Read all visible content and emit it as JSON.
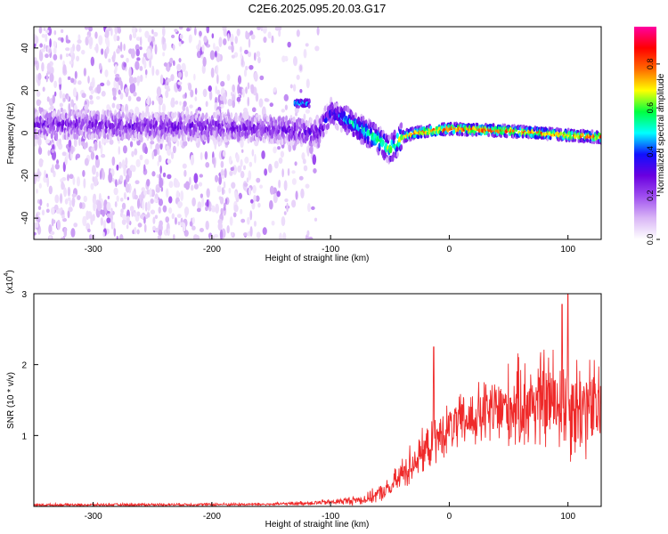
{
  "chart_data": [
    {
      "type": "heatmap",
      "title": "C2E6.2025.095.20.03.G17",
      "xlabel": "Height of straight line (km)",
      "ylabel": "Frequency (Hz)",
      "xlim": [
        -350,
        128
      ],
      "ylim": [
        -50,
        50
      ],
      "x_ticks": [
        -300,
        -200,
        -100,
        0,
        100
      ],
      "y_ticks": [
        -40,
        -20,
        0,
        20,
        40
      ],
      "colorbar": {
        "label": "Normalized spectral amplitude",
        "range": [
          0,
          0.97
        ],
        "ticks": [
          "0.0",
          "0.2",
          "0.4",
          "0.6",
          "0.8"
        ],
        "colors": [
          "#ffffff",
          "#d9b6f6",
          "#a050ef",
          "#6a00e0",
          "#1010ff",
          "#00ffff",
          "#00ff40",
          "#ffff00",
          "#ff6a00",
          "#ff0000",
          "#ff00a0"
        ]
      },
      "main_trace": [
        {
          "x": -350,
          "y": 4,
          "amp": 0.25
        },
        {
          "x": -300,
          "y": 4,
          "amp": 0.25
        },
        {
          "x": -250,
          "y": 3,
          "amp": 0.25
        },
        {
          "x": -200,
          "y": 3,
          "amp": 0.25
        },
        {
          "x": -150,
          "y": 2,
          "amp": 0.25
        },
        {
          "x": -110,
          "y": 0,
          "amp": 0.3
        },
        {
          "x": -100,
          "y": 10,
          "amp": 0.35
        },
        {
          "x": -80,
          "y": 4,
          "amp": 0.5
        },
        {
          "x": -60,
          "y": -3,
          "amp": 0.6
        },
        {
          "x": -50,
          "y": -8,
          "amp": 0.6
        },
        {
          "x": -40,
          "y": -2,
          "amp": 0.7
        },
        {
          "x": -30,
          "y": 0,
          "amp": 0.8
        },
        {
          "x": 0,
          "y": 2,
          "amp": 0.85
        },
        {
          "x": 50,
          "y": 1,
          "amp": 0.85
        },
        {
          "x": 100,
          "y": -1,
          "amp": 0.8
        },
        {
          "x": 128,
          "y": -2,
          "amp": 0.8
        }
      ],
      "isolated_feature": {
        "x": [
          -130,
          -118
        ],
        "y": 14,
        "amp": 0.5
      }
    },
    {
      "type": "line",
      "xlabel": "Height of straight line (km)",
      "ylabel": "SNR (10 * v/v)",
      "y_exponent": "(x10",
      "y_exponent_power": "4",
      "xlim": [
        -350,
        128
      ],
      "ylim": [
        0,
        3
      ],
      "x_ticks": [
        -300,
        -200,
        -100,
        0,
        100
      ],
      "y_ticks": [
        1,
        2,
        3
      ],
      "line_color": "#ef2a2a",
      "envelope": [
        {
          "x": -350,
          "mean": 0.02,
          "spread": 0.02
        },
        {
          "x": -150,
          "mean": 0.03,
          "spread": 0.02
        },
        {
          "x": -100,
          "mean": 0.06,
          "spread": 0.04
        },
        {
          "x": -70,
          "mean": 0.1,
          "spread": 0.08
        },
        {
          "x": -50,
          "mean": 0.25,
          "spread": 0.15
        },
        {
          "x": -35,
          "mean": 0.55,
          "spread": 0.3
        },
        {
          "x": -20,
          "mean": 0.8,
          "spread": 0.3
        },
        {
          "x": -10,
          "mean": 0.95,
          "spread": 0.35
        },
        {
          "x": 0,
          "mean": 1.1,
          "spread": 0.35
        },
        {
          "x": 20,
          "mean": 1.25,
          "spread": 0.45
        },
        {
          "x": 50,
          "mean": 1.4,
          "spread": 0.6
        },
        {
          "x": 80,
          "mean": 1.5,
          "spread": 0.75
        },
        {
          "x": 100,
          "mean": 1.45,
          "spread": 0.8
        },
        {
          "x": 128,
          "mean": 1.35,
          "spread": 0.7
        }
      ],
      "spikes": [
        {
          "x": -13,
          "y": 2.25
        },
        {
          "x": 100,
          "y": 3.0
        },
        {
          "x": 95,
          "y": 2.85
        }
      ]
    }
  ]
}
